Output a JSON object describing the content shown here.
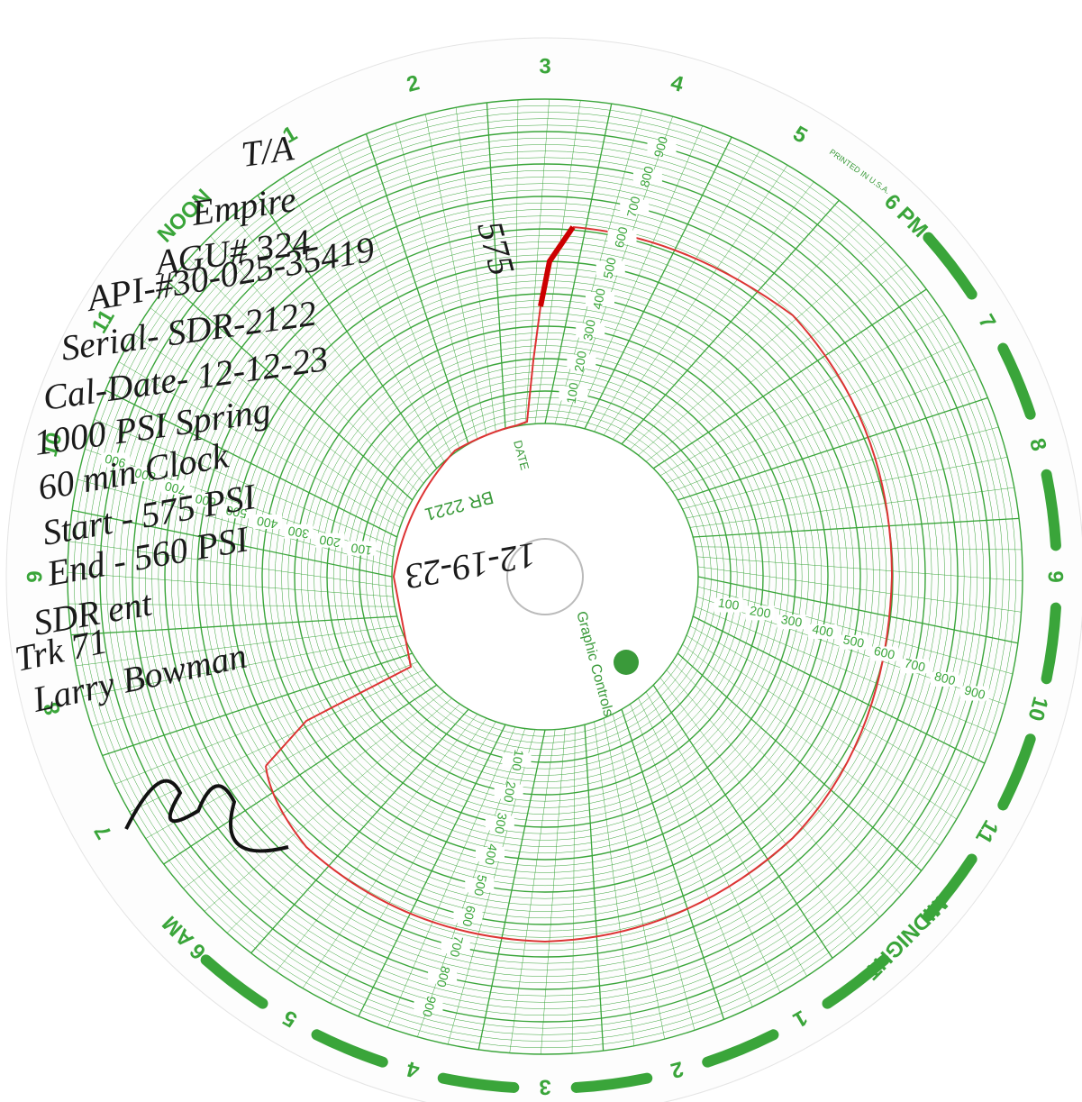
{
  "chart_paper": {
    "hour_labels": [
      "3",
      "4",
      "5",
      "6 PM",
      "7",
      "8",
      "9",
      "10",
      "11",
      "MIDNIGHT",
      "1",
      "2",
      "3",
      "4",
      "5",
      "6 AM",
      "7",
      "8",
      "9",
      "10",
      "11",
      "NOON",
      "1",
      "2"
    ],
    "scale_labels": [
      "100",
      "200",
      "300",
      "400",
      "500",
      "600",
      "700",
      "800",
      "900"
    ],
    "center": {
      "chart_number": "BR 2221",
      "date_label": "DATE",
      "maker": "Graphic Controls",
      "printed": "PRINTED IN U.S.A."
    }
  },
  "handwriting": {
    "lines": [
      "T/A",
      "Empire",
      "AGU# 324",
      "API-#30-025-35419",
      "Serial- SDR-2122",
      "Cal-Date- 12-12-23",
      "1000 PSI Spring",
      "60 min Clock",
      "Start - 575 PSI",
      "End - 560 PSI",
      "SDR ent",
      "Trk 71",
      "Larry Bowman"
    ],
    "date": "12-19-23",
    "reading": "575"
  }
}
